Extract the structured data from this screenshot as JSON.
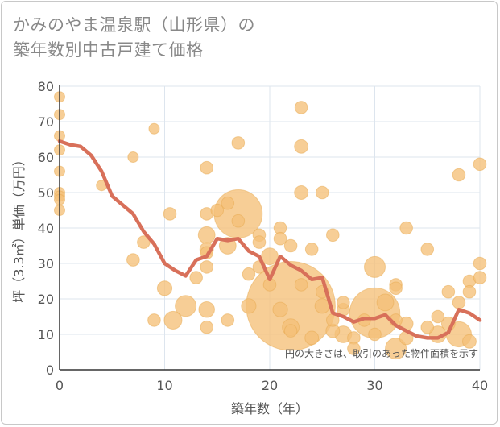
{
  "chart_data": {
    "type": "scatter",
    "title": [
      "かみのやま温泉駅（山形県）の",
      "築年数別中古戸建て価格"
    ],
    "xlabel": "築年数（年）",
    "ylabel": "坪（3.3㎡）単価（万円）",
    "xlim": [
      0,
      40
    ],
    "ylim": [
      0,
      80
    ],
    "xticks": [
      "0",
      "10",
      "20",
      "30",
      "40"
    ],
    "yticks": [
      "0",
      "10",
      "20",
      "30",
      "40",
      "50",
      "60",
      "70",
      "80"
    ],
    "grid": true,
    "note": "円の大きさは、取引のあった物件面積を示す",
    "colors": {
      "bubble": "#f5c078",
      "bubble_stroke": "#e8a94f",
      "line": "#d8705a",
      "grid": "#dde5ee",
      "axis": "#333333"
    },
    "points": [
      {
        "x": 0,
        "y": 77,
        "s": 1
      },
      {
        "x": 0,
        "y": 72,
        "s": 1
      },
      {
        "x": 0,
        "y": 66,
        "s": 1
      },
      {
        "x": 0,
        "y": 62,
        "s": 1
      },
      {
        "x": 0,
        "y": 56,
        "s": 1
      },
      {
        "x": 0,
        "y": 50,
        "s": 1
      },
      {
        "x": 0,
        "y": 49,
        "s": 1
      },
      {
        "x": 0,
        "y": 48,
        "s": 1
      },
      {
        "x": 0,
        "y": 45,
        "s": 1
      },
      {
        "x": 4,
        "y": 52,
        "s": 1
      },
      {
        "x": 7,
        "y": 60,
        "s": 1
      },
      {
        "x": 7,
        "y": 31,
        "s": 1.2
      },
      {
        "x": 8,
        "y": 36,
        "s": 1.2
      },
      {
        "x": 9,
        "y": 68,
        "s": 1
      },
      {
        "x": 9,
        "y": 14,
        "s": 1.2
      },
      {
        "x": 10,
        "y": 23,
        "s": 1.4
      },
      {
        "x": 10.5,
        "y": 44,
        "s": 1.2
      },
      {
        "x": 10.8,
        "y": 14,
        "s": 1.7
      },
      {
        "x": 12,
        "y": 18,
        "s": 2
      },
      {
        "x": 13,
        "y": 26,
        "s": 1.2
      },
      {
        "x": 14,
        "y": 57,
        "s": 1.2
      },
      {
        "x": 14,
        "y": 44,
        "s": 1.2
      },
      {
        "x": 14,
        "y": 38,
        "s": 1.6
      },
      {
        "x": 14,
        "y": 34,
        "s": 1.3
      },
      {
        "x": 14,
        "y": 33,
        "s": 1.2
      },
      {
        "x": 14,
        "y": 29,
        "s": 1.2
      },
      {
        "x": 14,
        "y": 17,
        "s": 1.5
      },
      {
        "x": 14,
        "y": 12,
        "s": 1.2
      },
      {
        "x": 15,
        "y": 45,
        "s": 1.2
      },
      {
        "x": 16,
        "y": 47,
        "s": 1.2
      },
      {
        "x": 16,
        "y": 35,
        "s": 1.6
      },
      {
        "x": 16,
        "y": 14,
        "s": 1.2
      },
      {
        "x": 17,
        "y": 64,
        "s": 1.2
      },
      {
        "x": 17,
        "y": 44,
        "s": 4.6
      },
      {
        "x": 17,
        "y": 42,
        "s": 1.2
      },
      {
        "x": 18,
        "y": 27,
        "s": 1.2
      },
      {
        "x": 18,
        "y": 18,
        "s": 1.4
      },
      {
        "x": 19,
        "y": 38,
        "s": 1.2
      },
      {
        "x": 19,
        "y": 36,
        "s": 1.2
      },
      {
        "x": 19,
        "y": 29,
        "s": 1.2
      },
      {
        "x": 20,
        "y": 32,
        "s": 1.6
      },
      {
        "x": 20,
        "y": 24,
        "s": 1.2
      },
      {
        "x": 21,
        "y": 40,
        "s": 1.2
      },
      {
        "x": 21,
        "y": 37,
        "s": 1.2
      },
      {
        "x": 21,
        "y": 17,
        "s": 1.4
      },
      {
        "x": 22,
        "y": 35,
        "s": 1.2
      },
      {
        "x": 22,
        "y": 18,
        "s": 8.5
      },
      {
        "x": 22,
        "y": 12,
        "s": 1.6
      },
      {
        "x": 22,
        "y": 11,
        "s": 1.2
      },
      {
        "x": 23,
        "y": 74,
        "s": 1.2
      },
      {
        "x": 23,
        "y": 63,
        "s": 1.3
      },
      {
        "x": 23,
        "y": 50,
        "s": 1.3
      },
      {
        "x": 23,
        "y": 24,
        "s": 1.2
      },
      {
        "x": 24,
        "y": 34,
        "s": 1.2
      },
      {
        "x": 24,
        "y": 9,
        "s": 1.3
      },
      {
        "x": 25,
        "y": 50,
        "s": 1.2
      },
      {
        "x": 25,
        "y": 22,
        "s": 1.2
      },
      {
        "x": 25,
        "y": 18,
        "s": 1.4
      },
      {
        "x": 26,
        "y": 38,
        "s": 1.2
      },
      {
        "x": 26,
        "y": 14,
        "s": 1.2
      },
      {
        "x": 26,
        "y": 11,
        "s": 1.3
      },
      {
        "x": 27,
        "y": 17,
        "s": 1.2
      },
      {
        "x": 27,
        "y": 10,
        "s": 1.6
      },
      {
        "x": 27,
        "y": 19,
        "s": 1.2
      },
      {
        "x": 28,
        "y": 9,
        "s": 1.2
      },
      {
        "x": 28,
        "y": 6,
        "s": 1.2
      },
      {
        "x": 29,
        "y": 14,
        "s": 1.2
      },
      {
        "x": 30,
        "y": 29,
        "s": 2
      },
      {
        "x": 30,
        "y": 16,
        "s": 4.8
      },
      {
        "x": 30,
        "y": 10,
        "s": 1.2
      },
      {
        "x": 31,
        "y": 19,
        "s": 1.6
      },
      {
        "x": 32,
        "y": 24,
        "s": 1.2
      },
      {
        "x": 32,
        "y": 23,
        "s": 1.2
      },
      {
        "x": 32,
        "y": 14,
        "s": 1.2
      },
      {
        "x": 32,
        "y": 6,
        "s": 2
      },
      {
        "x": 33,
        "y": 40,
        "s": 1.2
      },
      {
        "x": 33,
        "y": 13,
        "s": 1.3
      },
      {
        "x": 33,
        "y": 9,
        "s": 1.3
      },
      {
        "x": 35,
        "y": 34,
        "s": 1.2
      },
      {
        "x": 35,
        "y": 12,
        "s": 1.2
      },
      {
        "x": 36,
        "y": 15,
        "s": 1.2
      },
      {
        "x": 36,
        "y": 10,
        "s": 1.6
      },
      {
        "x": 37,
        "y": 22,
        "s": 1.2
      },
      {
        "x": 37,
        "y": 13,
        "s": 1.3
      },
      {
        "x": 38,
        "y": 55,
        "s": 1.2
      },
      {
        "x": 38,
        "y": 19,
        "s": 1.2
      },
      {
        "x": 38,
        "y": 10,
        "s": 2.4
      },
      {
        "x": 39,
        "y": 25,
        "s": 1.2
      },
      {
        "x": 39,
        "y": 22,
        "s": 1.2
      },
      {
        "x": 39,
        "y": 8,
        "s": 1.3
      },
      {
        "x": 40,
        "y": 58,
        "s": 1.2
      },
      {
        "x": 40,
        "y": 30,
        "s": 1.2
      },
      {
        "x": 40,
        "y": 26,
        "s": 1.2
      }
    ],
    "trend": {
      "x": [
        0,
        1,
        2,
        3,
        4,
        5,
        6,
        7,
        8,
        9,
        10,
        11,
        12,
        13,
        14,
        15,
        16,
        17,
        18,
        19,
        20,
        21,
        22,
        23,
        24,
        25,
        26,
        27,
        28,
        29,
        30,
        31,
        32,
        33,
        34,
        35,
        36,
        37,
        38,
        39,
        40
      ],
      "y": [
        64.5,
        63.5,
        63,
        60.5,
        56,
        49,
        46.5,
        44,
        39,
        35.5,
        30,
        28,
        26.5,
        31,
        32,
        37,
        36.5,
        37,
        33.5,
        32,
        25.5,
        32,
        29.5,
        28,
        25.5,
        26,
        16,
        15,
        13.5,
        14.5,
        14.5,
        15.5,
        12.5,
        11,
        9.5,
        9,
        9,
        10.5,
        17,
        16,
        14
      ]
    }
  }
}
